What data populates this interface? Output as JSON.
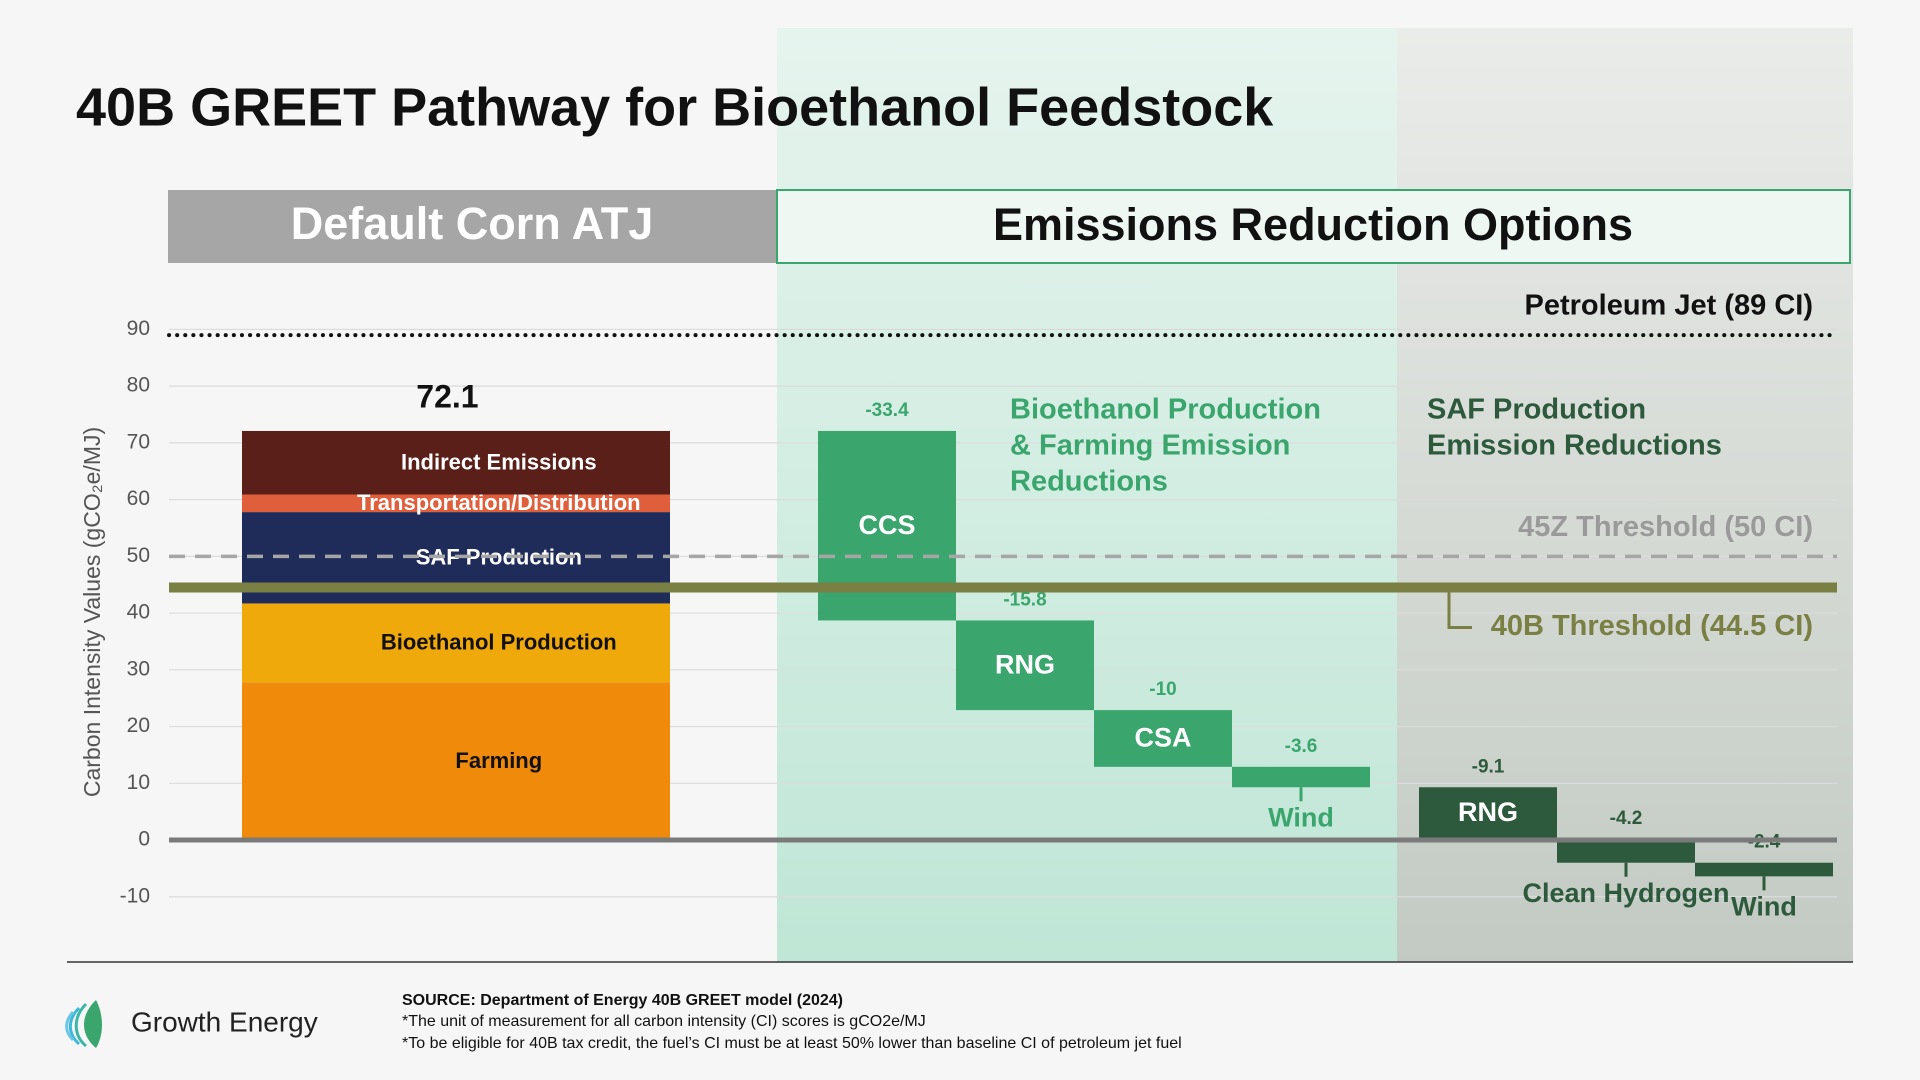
{
  "title": "40B GREET Pathway for Bioethanol Feedstock",
  "sections": [
    "Default Corn ATJ",
    "Emissions Reduction Options"
  ],
  "chart_data": {
    "type": "waterfall",
    "y_label": "Carbon Intensity Values (gCO₂e/MJ)",
    "ylim": [
      -20,
      90
    ],
    "yticks": [
      -10,
      0,
      10,
      20,
      30,
      40,
      50,
      60,
      70,
      80,
      90
    ],
    "grid": true,
    "stack": {
      "total": 72.1,
      "segments": [
        {
          "name": "Farming",
          "value": 27.8,
          "color": "#ef8a0a",
          "text_color": "#111111"
        },
        {
          "name": "Bioethanol Production",
          "value": 13.9,
          "color": "#f0a90a",
          "text_color": "#111111"
        },
        {
          "name": "SAF Production",
          "value": 16.1,
          "color": "#1f2c59",
          "text_color": "#ffffff"
        },
        {
          "name": "Transportation/Distribution",
          "value": 3.1,
          "color": "#df5f3c",
          "text_color": "#ffffff"
        },
        {
          "name": "Indirect Emissions",
          "value": 11.2,
          "color": "#5a1f19",
          "text_color": "#ffffff"
        }
      ]
    },
    "groups": [
      {
        "title": [
          "Bioethanol Production",
          "& Farming Emission",
          "Reductions"
        ],
        "color": "#3aa66e",
        "steps": [
          {
            "name": "CCS",
            "value": -33.4
          },
          {
            "name": "RNG",
            "value": -15.8
          },
          {
            "name": "CSA",
            "value": -10
          },
          {
            "name": "Wind",
            "value": -3.6
          }
        ]
      },
      {
        "title": [
          "SAF Production",
          "Emission Reductions"
        ],
        "color": "#2d5a3c",
        "steps": [
          {
            "name": "RNG",
            "value": -9.1
          },
          {
            "name": "Clean Hydrogen",
            "value": -4.2
          },
          {
            "name": "Wind",
            "value": -2.4
          }
        ]
      }
    ],
    "thresholds": [
      {
        "label": "Petroleum Jet (89 CI)",
        "value": 89,
        "style": "dotted",
        "color": "#111111",
        "text_color": "#111111"
      },
      {
        "label": "45Z Threshold (50 CI)",
        "value": 50,
        "style": "dashed",
        "color": "#a6a6a6",
        "text_color": "#9a9a9a"
      },
      {
        "label": "40B Threshold (44.5 CI)",
        "value": 44.5,
        "style": "solid",
        "color": "#7a7f44",
        "text_color": "#7a7f44"
      }
    ]
  },
  "footer": {
    "logo": "Growth Energy",
    "source": "SOURCE: Department of Energy 40B GREET model (2024)",
    "notes": [
      "*The unit of measurement for all carbon intensity (CI) scores is gCO2e/MJ",
      "*To be eligible for 40B tax credit, the fuel’s CI must be at least 50% lower than baseline CI of petroleum jet fuel"
    ]
  }
}
